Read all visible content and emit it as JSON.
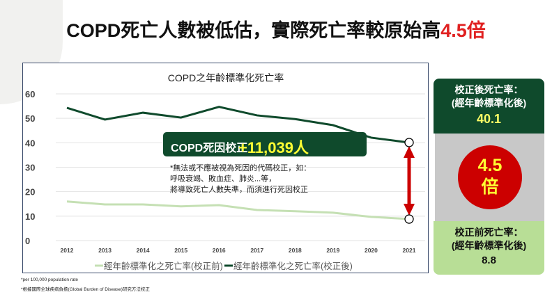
{
  "title": {
    "main": "COPD死亡人數被低估，實際死亡率較原始高",
    "highlight": "4.5倍"
  },
  "chart_data": {
    "type": "line",
    "title": "COPD之年齡標準化死亡率",
    "categories": [
      "2012",
      "2013",
      "2014",
      "2015",
      "2016",
      "2017",
      "2018",
      "2019",
      "2020",
      "2021"
    ],
    "ylim": [
      0,
      60
    ],
    "yticks": [
      0,
      10,
      20,
      30,
      40,
      50,
      60
    ],
    "grid": true,
    "legend": "bottom",
    "series": [
      {
        "name": "經年齡標準化之死亡率(校正前)",
        "color": "#c5e0b4",
        "values": [
          16.0,
          14.8,
          14.8,
          14.0,
          14.5,
          12.5,
          12.0,
          11.4,
          9.7,
          8.8
        ]
      },
      {
        "name": "經年齡標準化之死亡率(校正後)",
        "color": "#0f4a2c",
        "values": [
          54.3,
          49.5,
          52.3,
          50.3,
          54.7,
          51.2,
          49.7,
          47.2,
          42.1,
          40.1
        ]
      }
    ],
    "annotation": {
      "label": "COPD死因校正",
      "value": "+11,039人",
      "note": [
        "*無法或不應被視為死因的代碼校正，如：",
        "呼吸衰竭、敗血症、肺炎...等，",
        "將導致死亡人數失準，而須進行死因校正"
      ]
    }
  },
  "side": {
    "after_label": "校正後死亡率：",
    "after_sub": "(經年齡標準化後)",
    "after_value": "40.1",
    "ratio_num": "4.5",
    "ratio_unit": "倍",
    "before_label": "校正前死亡率：",
    "before_sub": "(經年齡標準化後)",
    "before_value": "8.8"
  },
  "footnotes": [
    "*per 100,000 population rate",
    "*根據國際全球疾病負擔(Global Burden of Disease)研究方法校正"
  ],
  "colors": {
    "dark_green": "#0f4a2c",
    "light_green": "#c5e0b4",
    "red": "#cc0000",
    "yellow": "#ffff33"
  }
}
